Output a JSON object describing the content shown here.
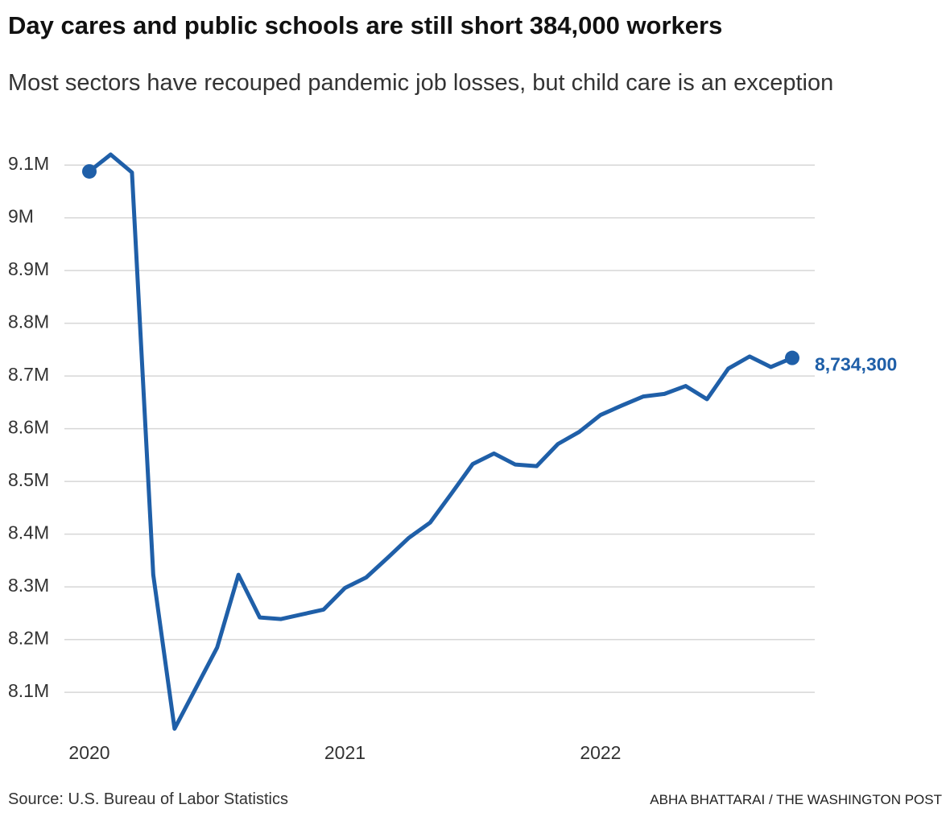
{
  "chart_data": {
    "type": "line",
    "title": "Day cares and public schools are still short 384,000 workers",
    "subtitle": "Most sectors have recouped pandemic job losses, but child care is an exception",
    "source": "Source: U.S. Bureau of Labor Statistics",
    "credit": "ABHA BHATTARAI / THE WASHINGTON POST",
    "categories": [
      "2020",
      null,
      null,
      null,
      null,
      null,
      null,
      null,
      null,
      null,
      null,
      null,
      "2021",
      null,
      null,
      null,
      null,
      null,
      null,
      null,
      null,
      null,
      null,
      null,
      "2022",
      null,
      null,
      null,
      null,
      null,
      null,
      null,
      null,
      null
    ],
    "values": [
      9088000,
      9120000,
      9086000,
      8323000,
      8031000,
      8108000,
      8185000,
      8323000,
      8242000,
      8239000,
      8248000,
      8257000,
      8298000,
      8318000,
      8355000,
      8393000,
      8422000,
      8477000,
      8533000,
      8553000,
      8532000,
      8529000,
      8571000,
      8594000,
      8626000,
      8644000,
      8661000,
      8666000,
      8681000,
      8656000,
      8714000,
      8737000,
      8717000,
      8734300
    ],
    "value_labels": [
      null,
      null,
      null,
      null,
      null,
      null,
      null,
      null,
      null,
      null,
      null,
      null,
      null,
      null,
      null,
      null,
      null,
      null,
      null,
      null,
      null,
      null,
      null,
      null,
      null,
      null,
      null,
      null,
      null,
      null,
      null,
      null,
      null,
      "8,734,300"
    ],
    "color": "#1f5fa8",
    "ylim": [
      8030000,
      9120000
    ],
    "yticks": [
      {
        "value": 8100000,
        "label": "8.1M"
      },
      {
        "value": 8200000,
        "label": "8.2M"
      },
      {
        "value": 8300000,
        "label": "8.3M"
      },
      {
        "value": 8400000,
        "label": "8.4M"
      },
      {
        "value": 8500000,
        "label": "8.5M"
      },
      {
        "value": 8600000,
        "label": "8.6M"
      },
      {
        "value": 8700000,
        "label": "8.7M"
      },
      {
        "value": 8800000,
        "label": "8.8M"
      },
      {
        "value": 8900000,
        "label": "8.9M"
      },
      {
        "value": 9000000,
        "label": "9M"
      },
      {
        "value": 9100000,
        "label": "9.1M"
      }
    ],
    "grid": true
  }
}
